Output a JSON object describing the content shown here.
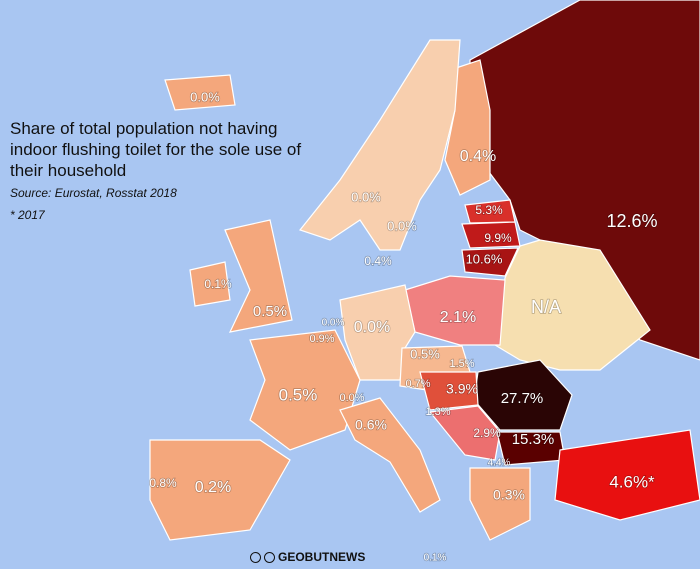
{
  "header": {
    "title": "Share of total population not having indoor flushing toilet for the sole use of their household",
    "source": "Source: Eurostat, Rosstat 2018",
    "note": "* 2017"
  },
  "regions": [
    {
      "label": "0.0%"
    },
    {
      "label": "0.4%"
    },
    {
      "label": "0.0%"
    },
    {
      "label": "0.0%"
    },
    {
      "label": "5.3%"
    },
    {
      "label": "9.9%"
    },
    {
      "label": "10.6%"
    },
    {
      "label": "12.6%"
    },
    {
      "label": "0.4%"
    },
    {
      "label": "0.1%"
    },
    {
      "label": "0.5%"
    },
    {
      "label": "2.1%"
    },
    {
      "label": "N/A"
    },
    {
      "label": "0.0%"
    },
    {
      "label": "0.0%"
    },
    {
      "label": "0.9%"
    },
    {
      "label": "0.5%"
    },
    {
      "label": "1.5%"
    },
    {
      "label": "0.7%"
    },
    {
      "label": "3.9%"
    },
    {
      "label": "27.7%"
    },
    {
      "label": "0.5%"
    },
    {
      "label": "0.0%"
    },
    {
      "label": "1.3%"
    },
    {
      "label": "2.9%"
    },
    {
      "label": "15.3%"
    },
    {
      "label": "4.4%"
    },
    {
      "label": "0.6%"
    },
    {
      "label": "0.3%"
    },
    {
      "label": "4.6%*"
    },
    {
      "label": "0.8%"
    },
    {
      "label": "0.2%"
    },
    {
      "label": "0.1%"
    }
  ],
  "watermark": "GEOBUTNEWS"
}
